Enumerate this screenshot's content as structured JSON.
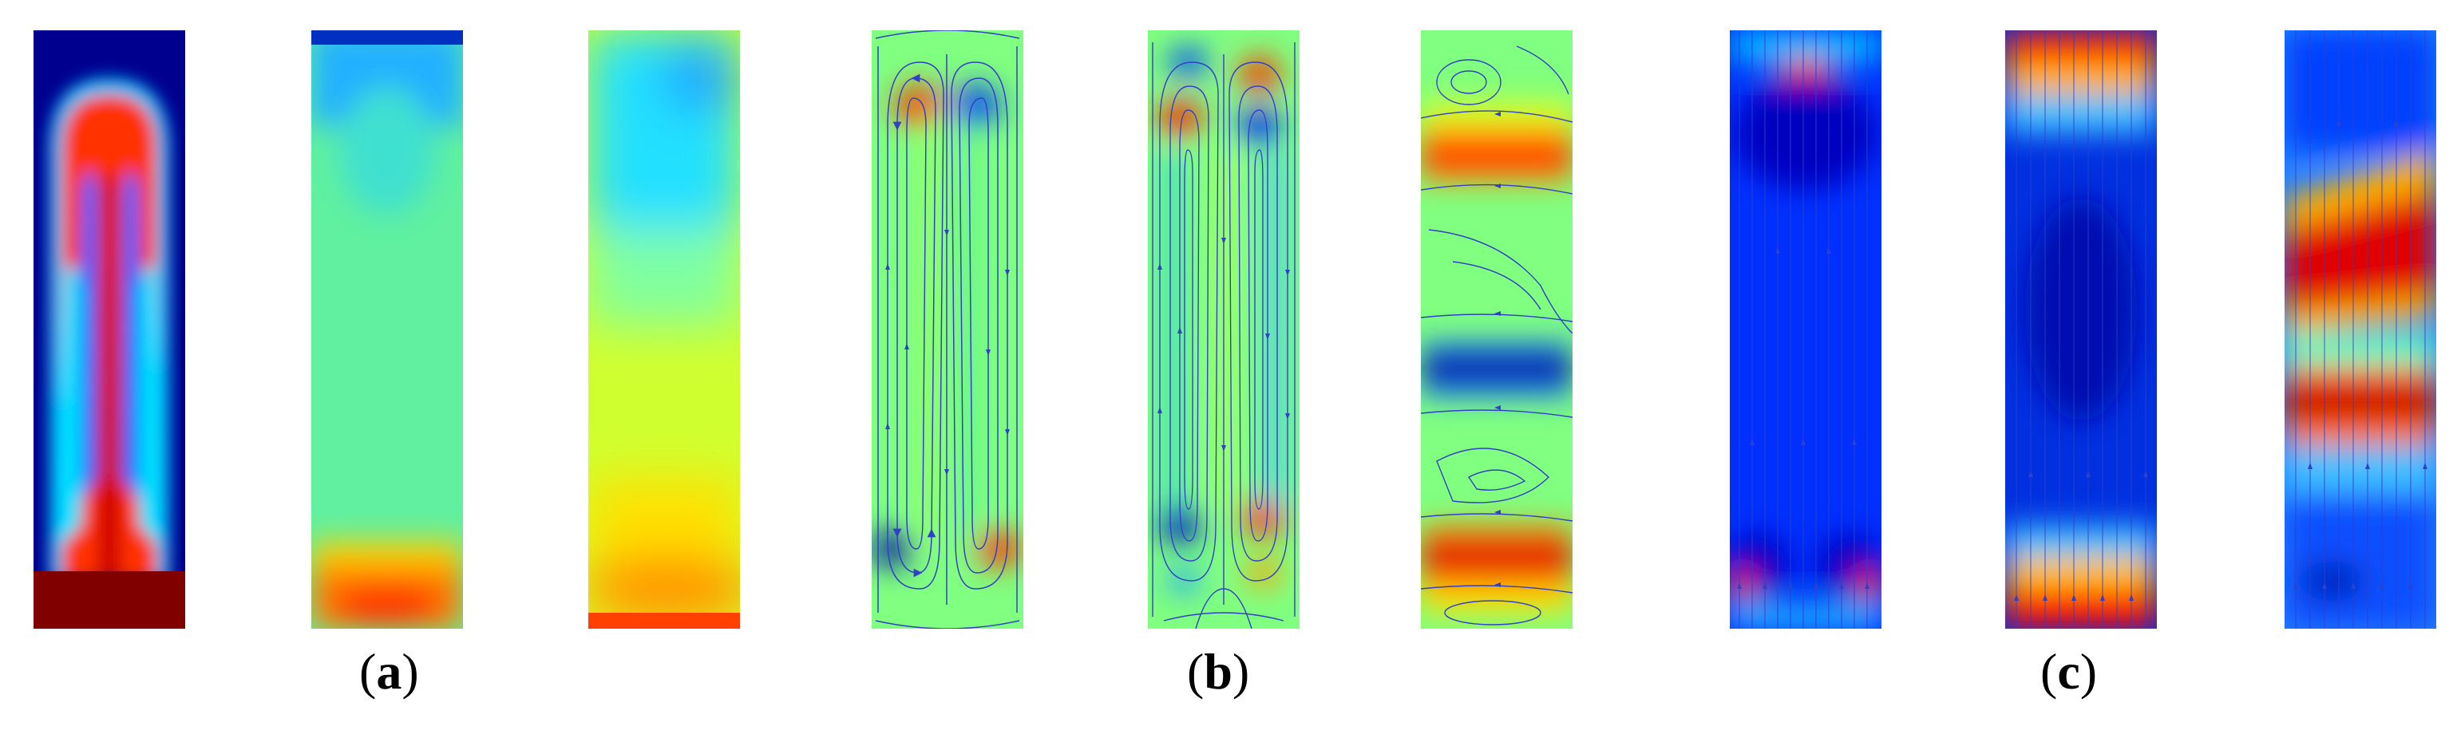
{
  "figure": {
    "captions": {
      "a": "a",
      "b": "b",
      "c": "c"
    },
    "colormap": [
      "#00008f",
      "#0000ff",
      "#00ffff",
      "#80ff80",
      "#ffff00",
      "#ff7f00",
      "#ff0000",
      "#800000"
    ],
    "streamline_color": "#3040c8"
  }
}
